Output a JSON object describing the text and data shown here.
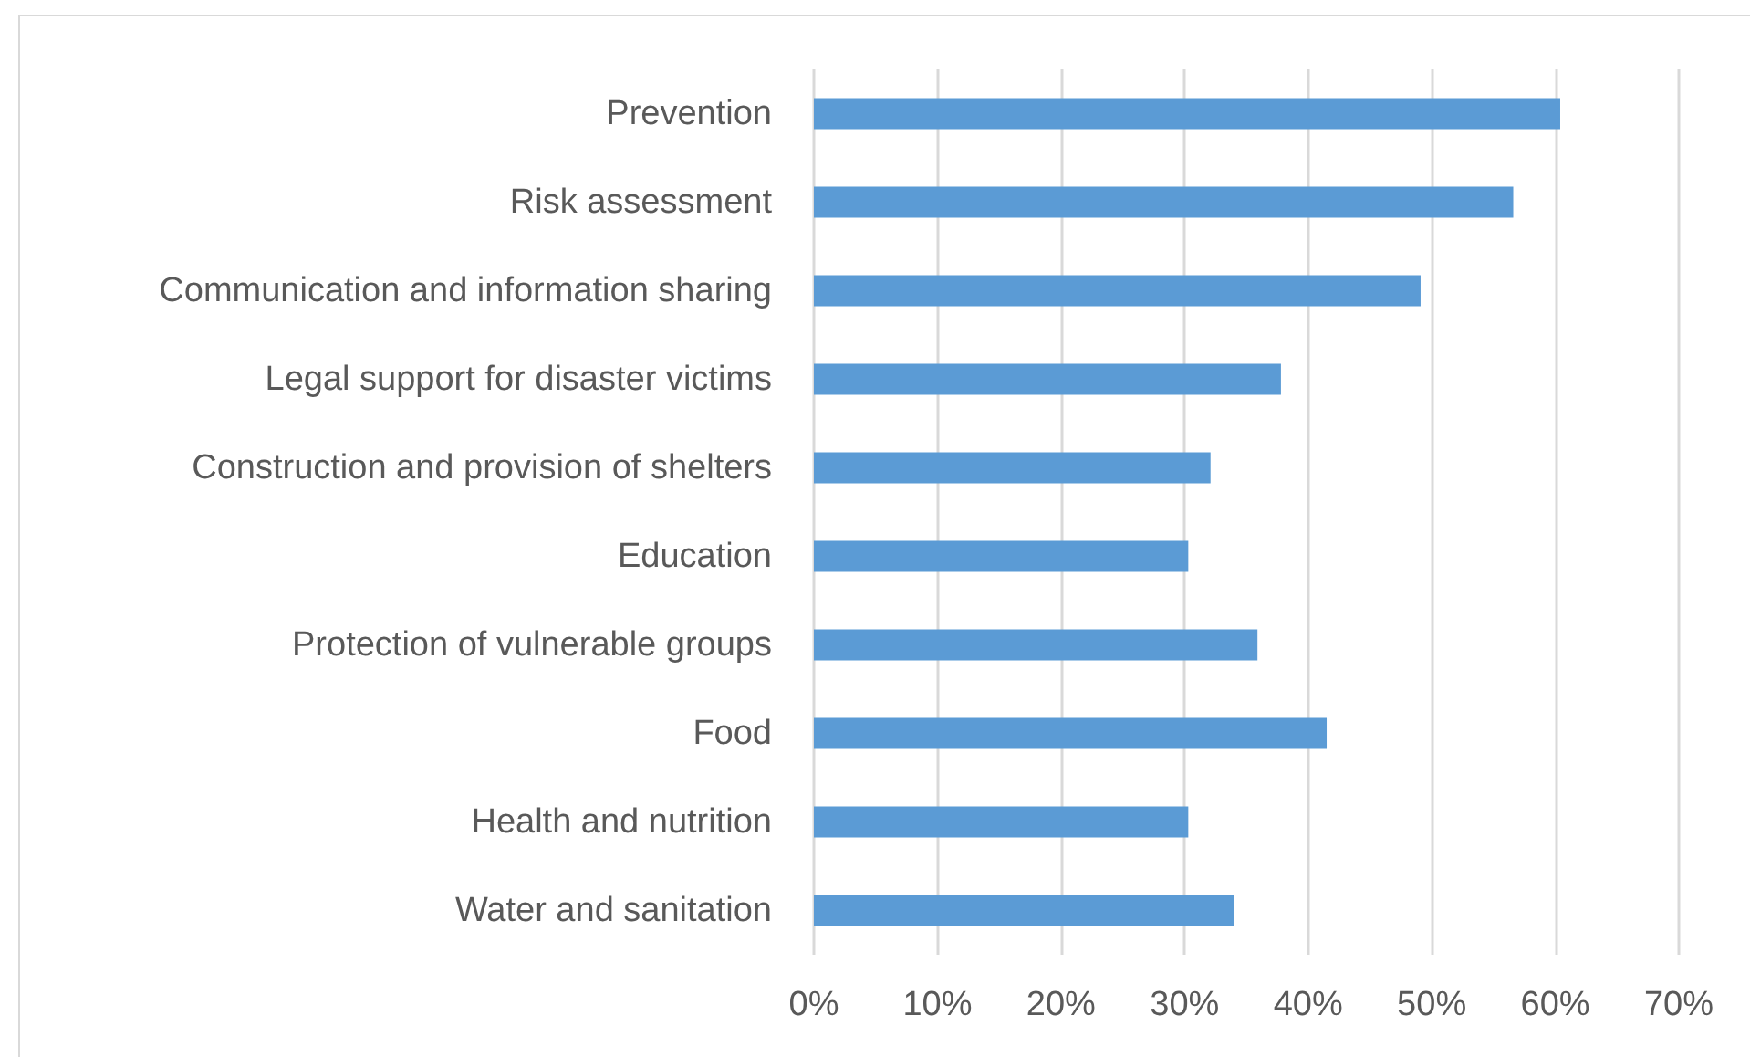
{
  "chart_data": {
    "type": "bar",
    "orientation": "horizontal",
    "categories": [
      "Prevention",
      "Risk assessment",
      "Communication and information sharing",
      "Legal support for disaster victims",
      "Construction and provision of shelters",
      "Education",
      "Protection of vulnerable groups",
      "Food",
      "Health and nutrition",
      "Water and sanitation"
    ],
    "values": [
      60.4,
      56.6,
      49.1,
      37.8,
      32.1,
      30.3,
      35.9,
      41.5,
      30.3,
      34.0
    ],
    "color": "#5b9bd5",
    "xlim": [
      0,
      70
    ],
    "xticks": [
      {
        "value": 0,
        "label": "0%"
      },
      {
        "value": 10,
        "label": "10%"
      },
      {
        "value": 20,
        "label": "20%"
      },
      {
        "value": 30,
        "label": "30%"
      },
      {
        "value": 40,
        "label": "40%"
      },
      {
        "value": 50,
        "label": "50%"
      },
      {
        "value": 60,
        "label": "60%"
      },
      {
        "value": 70,
        "label": "70%"
      }
    ],
    "grid": "x"
  }
}
